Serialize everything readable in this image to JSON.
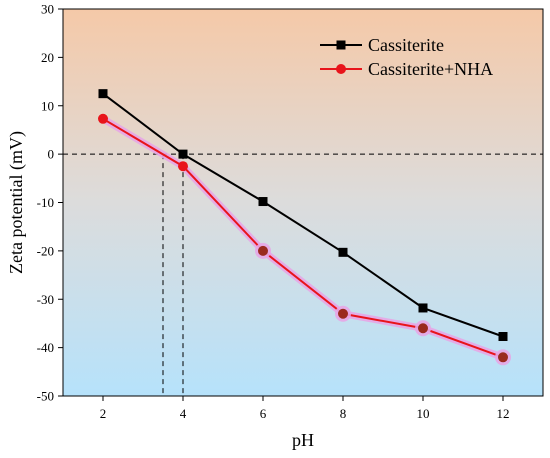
{
  "chart_data": {
    "type": "line",
    "xlabel": "pH",
    "ylabel": "Zeta potential (mV)",
    "xlim": [
      1,
      13
    ],
    "ylim": [
      -50,
      30
    ],
    "xticks": [
      2,
      4,
      6,
      8,
      10,
      12
    ],
    "yticks": [
      -50,
      -40,
      -30,
      -20,
      -10,
      0,
      10,
      20,
      30
    ],
    "legend_position": "top-right",
    "grid": false,
    "background_gradient": [
      "#f5c9a8",
      "#b6e2fb"
    ],
    "zero_reference_line": 0,
    "isoelectric_guides": [
      3.5,
      4.0
    ],
    "series": [
      {
        "name": "Cassiterite",
        "marker": "square",
        "color": "#000000",
        "x": [
          2,
          4,
          6,
          8,
          10,
          12
        ],
        "y": [
          12.5,
          0.0,
          -9.8,
          -20.3,
          -31.8,
          -37.7
        ]
      },
      {
        "name": "Cassiterite+NHA",
        "marker": "circle",
        "color": "#e8141b",
        "glow_color": "#e7a6e6",
        "x": [
          2,
          4,
          6,
          8,
          10,
          12
        ],
        "y": [
          7.3,
          -2.5,
          -20.0,
          -33.0,
          -36.0,
          -42.0
        ]
      }
    ]
  }
}
